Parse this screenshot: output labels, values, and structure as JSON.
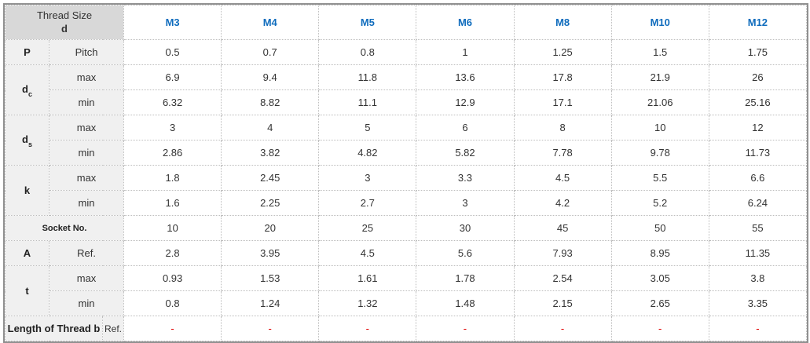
{
  "table": {
    "corner": {
      "title": "Thread Size",
      "subtitle": "d"
    },
    "columns": [
      "M3",
      "M4",
      "M5",
      "M6",
      "M8",
      "M10",
      "M12"
    ],
    "rows": [
      {
        "kind": "normal",
        "symbol": "P",
        "symbol_sub": "",
        "symbol_rowspan": 1,
        "param": "Pitch",
        "values": [
          "0.5",
          "0.7",
          "0.8",
          "1",
          "1.25",
          "1.5",
          "1.75"
        ]
      },
      {
        "kind": "normal",
        "symbol": "d",
        "symbol_sub": "c",
        "symbol_rowspan": 2,
        "param": "max",
        "values": [
          "6.9",
          "9.4",
          "11.8",
          "13.6",
          "17.8",
          "21.9",
          "26"
        ]
      },
      {
        "kind": "cont",
        "param": "min",
        "values": [
          "6.32",
          "8.82",
          "11.1",
          "12.9",
          "17.1",
          "21.06",
          "25.16"
        ]
      },
      {
        "kind": "normal",
        "symbol": "d",
        "symbol_sub": "s",
        "symbol_rowspan": 2,
        "param": "max",
        "values": [
          "3",
          "4",
          "5",
          "6",
          "8",
          "10",
          "12"
        ]
      },
      {
        "kind": "cont",
        "param": "min",
        "values": [
          "2.86",
          "3.82",
          "4.82",
          "5.82",
          "7.78",
          "9.78",
          "11.73"
        ]
      },
      {
        "kind": "normal",
        "symbol": "k",
        "symbol_sub": "",
        "symbol_rowspan": 2,
        "param": "max",
        "values": [
          "1.8",
          "2.45",
          "3",
          "3.3",
          "4.5",
          "5.5",
          "6.6"
        ]
      },
      {
        "kind": "cont",
        "param": "min",
        "values": [
          "1.6",
          "2.25",
          "2.7",
          "3",
          "4.2",
          "5.2",
          "6.24"
        ]
      },
      {
        "kind": "full-label",
        "label": "Socket No.",
        "values": [
          "10",
          "20",
          "25",
          "30",
          "45",
          "50",
          "55"
        ]
      },
      {
        "kind": "normal",
        "symbol": "A",
        "symbol_sub": "",
        "symbol_rowspan": 1,
        "param": "Ref.",
        "values": [
          "2.8",
          "3.95",
          "4.5",
          "5.6",
          "7.93",
          "8.95",
          "11.35"
        ]
      },
      {
        "kind": "normal",
        "symbol": "t",
        "symbol_sub": "",
        "symbol_rowspan": 2,
        "param": "max",
        "values": [
          "0.93",
          "1.53",
          "1.61",
          "1.78",
          "2.54",
          "3.05",
          "3.8"
        ]
      },
      {
        "kind": "cont",
        "param": "min",
        "values": [
          "0.8",
          "1.24",
          "1.32",
          "1.48",
          "2.15",
          "2.65",
          "3.35"
        ]
      },
      {
        "kind": "wide-label",
        "label": "Length of Thread b",
        "param": "Ref.",
        "values": [
          "-",
          "-",
          "-",
          "-",
          "-",
          "-",
          "-"
        ],
        "value_class": "red"
      }
    ]
  },
  "colors": {
    "header_blue": "#0f6cbd",
    "corner_bg": "#d8d8d8",
    "label_bg": "#f0f0f0",
    "dash_red": "#e00000",
    "text": "#333333",
    "border_outer": "#909090",
    "border_inner": "#bdbdbd"
  }
}
